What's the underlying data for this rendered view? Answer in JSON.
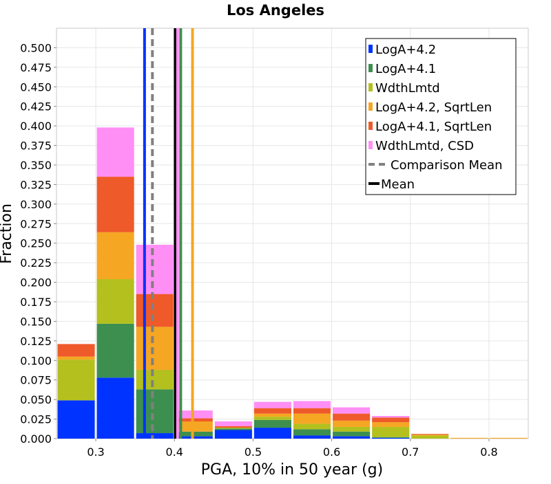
{
  "chart_data": {
    "type": "bar",
    "stacked": true,
    "title": "Los Angeles",
    "xlabel": "PGA, 10% in 50 year (g)",
    "ylabel": "Fraction",
    "xlim": [
      0.25,
      0.85
    ],
    "ylim": [
      0,
      0.525
    ],
    "x_ticks": [
      "0.3",
      "0.4",
      "0.5",
      "0.6",
      "0.7",
      "0.8"
    ],
    "y_ticks": [
      "0.000",
      "0.025",
      "0.050",
      "0.075",
      "0.100",
      "0.125",
      "0.150",
      "0.175",
      "0.200",
      "0.225",
      "0.250",
      "0.275",
      "0.300",
      "0.325",
      "0.350",
      "0.375",
      "0.400",
      "0.425",
      "0.450",
      "0.475",
      "0.500"
    ],
    "bin_width": 0.05,
    "bin_centers": [
      0.275,
      0.325,
      0.375,
      0.425,
      0.475,
      0.525,
      0.575,
      0.625,
      0.675,
      0.725,
      0.775,
      0.825
    ],
    "grid": true,
    "legend_position": "top-right",
    "series": [
      {
        "name": "LogA+4.2",
        "color": "#0033ff",
        "values": [
          0.049,
          0.078,
          0.007,
          0.003,
          0.011,
          0.014,
          0.004,
          0.003,
          0.001,
          0.0,
          0.0,
          0.0
        ]
      },
      {
        "name": "LogA+4.1",
        "color": "#3d8f4f",
        "values": [
          0.0,
          0.069,
          0.056,
          0.006,
          0.002,
          0.01,
          0.008,
          0.006,
          0.001,
          0.0,
          0.0,
          0.0
        ]
      },
      {
        "name": "WdthLmtd",
        "color": "#b3c01e",
        "values": [
          0.052,
          0.057,
          0.025,
          0.0,
          0.001,
          0.004,
          0.007,
          0.006,
          0.013,
          0.004,
          0.0,
          0.0
        ]
      },
      {
        "name": "LogA+4.2, SqrtLen",
        "color": "#f5a623",
        "values": [
          0.004,
          0.06,
          0.055,
          0.013,
          0.0,
          0.004,
          0.013,
          0.008,
          0.006,
          0.001,
          0.001,
          0.001
        ]
      },
      {
        "name": "LogA+4.1, SqrtLen",
        "color": "#ef5a2a",
        "values": [
          0.016,
          0.071,
          0.042,
          0.004,
          0.002,
          0.007,
          0.007,
          0.009,
          0.006,
          0.001,
          0.0,
          0.0
        ]
      },
      {
        "name": "WdthLmtd, CSD",
        "color": "#ff8ef5",
        "values": [
          0.0,
          0.063,
          0.063,
          0.01,
          0.006,
          0.008,
          0.009,
          0.008,
          0.002,
          0.0,
          0.0,
          0.0
        ]
      }
    ],
    "vertical_lines": [
      {
        "series": "LogA+4.2",
        "x": 0.362,
        "color": "#0033ff",
        "dashed": false
      },
      {
        "series": "Comparison Mean",
        "x": 0.372,
        "color": "#808080",
        "dashed": true
      },
      {
        "series": "Mean",
        "x": 0.401,
        "color": "#000000",
        "dashed": false
      },
      {
        "series": "WdthLmtd, CSD",
        "x": 0.404,
        "color": "#ff8ef5",
        "dashed": false
      },
      {
        "series": "LogA+4.1",
        "x": 0.408,
        "color": "#3d8f4f",
        "dashed": false
      },
      {
        "series": "LogA+4.2, SqrtLen",
        "x": 0.423,
        "color": "#f5a623",
        "dashed": false
      }
    ],
    "legend": [
      {
        "label": "LogA+4.2",
        "color": "#0033ff",
        "kind": "box"
      },
      {
        "label": "LogA+4.1",
        "color": "#3d8f4f",
        "kind": "box"
      },
      {
        "label": "WdthLmtd",
        "color": "#b3c01e",
        "kind": "box"
      },
      {
        "label": "LogA+4.2, SqrtLen",
        "color": "#f5a623",
        "kind": "box"
      },
      {
        "label": "LogA+4.1, SqrtLen",
        "color": "#ef5a2a",
        "kind": "box"
      },
      {
        "label": "WdthLmtd, CSD",
        "color": "#ff8ef5",
        "kind": "box"
      },
      {
        "label": "Comparison Mean",
        "color": "#808080",
        "kind": "dash"
      },
      {
        "label": "Mean",
        "color": "#000000",
        "kind": "line"
      }
    ]
  }
}
